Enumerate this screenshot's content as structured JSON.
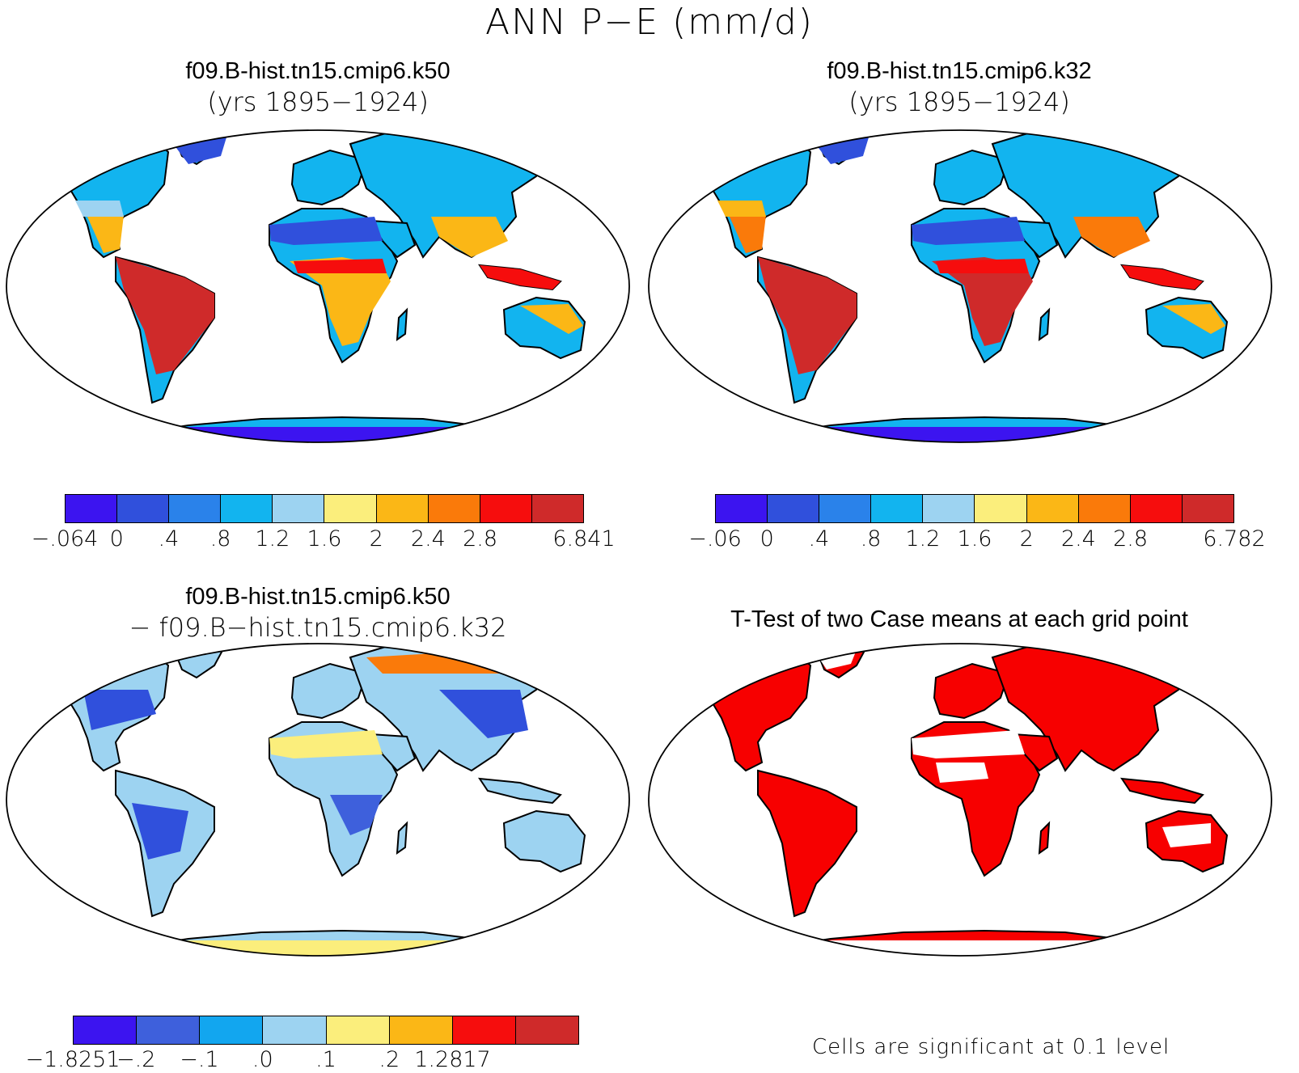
{
  "title": "ANN P−E (mm/d)",
  "panels": {
    "k50": {
      "case": "f09.B-hist.tn15.cmip6.k50",
      "years": "(yrs 1895−1924)"
    },
    "k32": {
      "case": "f09.B-hist.tn15.cmip6.k32",
      "years": "(yrs 1895−1924)"
    },
    "diff": {
      "case": "f09.B-hist.tn15.cmip6.k50",
      "minus": "− f09.B−hist.tn15.cmip6.k32"
    },
    "ttest": {
      "title": "T-Test of two Case means at each grid point",
      "note": "Cells are significant at 0.1 level",
      "color": "#f70000"
    }
  },
  "colorbars": {
    "k50": {
      "colors": [
        "#3c14f0",
        "#3050dc",
        "#2a82ea",
        "#12b4ef",
        "#9dd3f1",
        "#fbee7c",
        "#fbb716",
        "#fa7a0a",
        "#f60d0d",
        "#cf2a2a"
      ],
      "labels": [
        "−.064",
        "0",
        ".4",
        ".8",
        "1.2",
        "1.6",
        "2",
        "2.4",
        "2.8",
        "6.841"
      ]
    },
    "k32": {
      "colors": [
        "#3c14f0",
        "#3050dc",
        "#2a82ea",
        "#12b4ef",
        "#9dd3f1",
        "#fbee7c",
        "#fbb716",
        "#fa7a0a",
        "#f60d0d",
        "#cf2a2a"
      ],
      "labels": [
        "−.06",
        "0",
        ".4",
        ".8",
        "1.2",
        "1.6",
        "2",
        "2.4",
        "2.8",
        "6.782"
      ]
    },
    "diff": {
      "colors": [
        "#3c14f0",
        "#3e60dc",
        "#12a6ef",
        "#9dd3f1",
        "#fbee7c",
        "#fbb716",
        "#f60d0d",
        "#cf2a2a"
      ],
      "labels": [
        "−1.8251",
        "−.2",
        "−.1",
        ".0",
        ".1",
        ".2",
        "1.2817"
      ]
    }
  }
}
